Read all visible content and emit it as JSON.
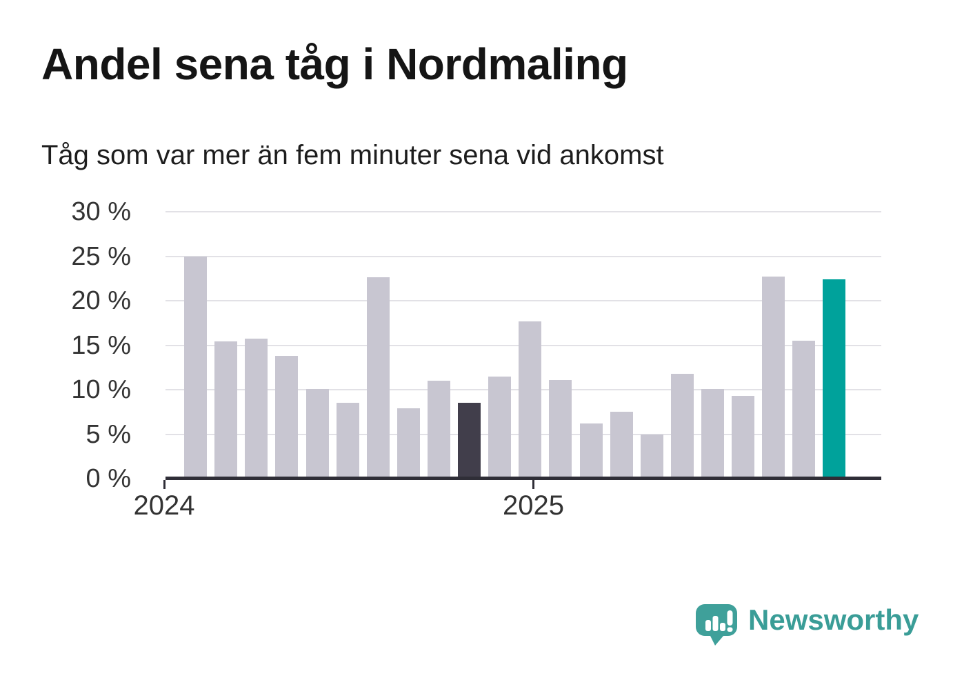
{
  "chart_data": {
    "type": "bar",
    "title": "Andel sena tåg i Nordmaling",
    "subtitle": "Tåg som var mer än fem minuter sena vid ankomst",
    "unit": "%",
    "ylim": [
      0,
      30
    ],
    "grid": true,
    "legend": "none",
    "y_ticks": [
      {
        "label": "0 %",
        "value": 0
      },
      {
        "label": "5 %",
        "value": 5
      },
      {
        "label": "10 %",
        "value": 10
      },
      {
        "label": "15 %",
        "value": 15
      },
      {
        "label": "20 %",
        "value": 20
      },
      {
        "label": "25 %",
        "value": 25
      },
      {
        "label": "30 %",
        "value": 30
      }
    ],
    "x_ticks": [
      {
        "label": "2024"
      },
      {
        "label": "2025"
      }
    ],
    "values": [
      25.0,
      15.4,
      15.7,
      13.8,
      10.1,
      8.5,
      22.6,
      7.9,
      11.0,
      8.5,
      11.5,
      17.7,
      11.1,
      6.2,
      7.5,
      5.0,
      11.8,
      10.1,
      9.3,
      22.7,
      15.5,
      22.4
    ],
    "highlight": {
      "dark_bar_index": 9,
      "accent_bar_index": 21
    },
    "colors": {
      "bar_default": "#c8c6d1",
      "bar_dark": "#413e4b",
      "bar_accent": "#00a29b",
      "axis": "#2f2e37",
      "gridline": "#e2e1e6",
      "tick_label": "#333333",
      "title": "#151515",
      "subtitle": "#1d1d1d"
    }
  },
  "branding": {
    "logo_text": "Newsworthy",
    "logo_color": "#3fa09a"
  }
}
